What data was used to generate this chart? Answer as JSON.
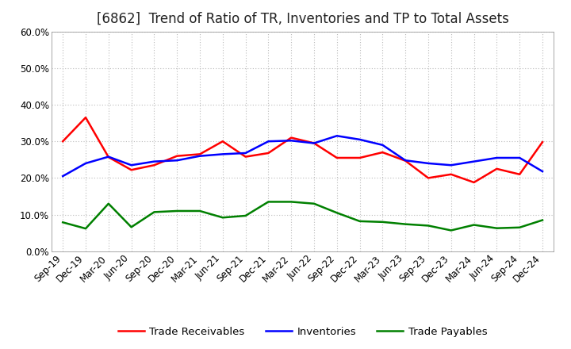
{
  "title": "[6862]  Trend of Ratio of TR, Inventories and TP to Total Assets",
  "x_labels": [
    "Sep-19",
    "Dec-19",
    "Mar-20",
    "Jun-20",
    "Sep-20",
    "Dec-20",
    "Mar-21",
    "Jun-21",
    "Sep-21",
    "Dec-21",
    "Mar-22",
    "Jun-22",
    "Sep-22",
    "Dec-22",
    "Mar-23",
    "Jun-23",
    "Sep-23",
    "Dec-23",
    "Mar-24",
    "Jun-24",
    "Sep-24",
    "Dec-24"
  ],
  "trade_receivables": [
    0.3,
    0.365,
    0.257,
    0.222,
    0.235,
    0.26,
    0.265,
    0.3,
    0.258,
    0.268,
    0.31,
    0.295,
    0.255,
    0.255,
    0.27,
    0.247,
    0.2,
    0.21,
    0.188,
    0.225,
    0.21,
    0.298
  ],
  "inventories": [
    0.205,
    0.24,
    0.258,
    0.235,
    0.245,
    0.248,
    0.26,
    0.265,
    0.268,
    0.3,
    0.302,
    0.295,
    0.315,
    0.305,
    0.29,
    0.248,
    0.24,
    0.235,
    0.245,
    0.255,
    0.255,
    0.218
  ],
  "trade_payables": [
    0.079,
    0.062,
    0.13,
    0.066,
    0.107,
    0.11,
    0.11,
    0.092,
    0.097,
    0.135,
    0.135,
    0.13,
    0.105,
    0.082,
    0.08,
    0.074,
    0.07,
    0.057,
    0.072,
    0.063,
    0.065,
    0.085
  ],
  "line_colors": {
    "trade_receivables": "#FF0000",
    "inventories": "#0000FF",
    "trade_payables": "#008000"
  },
  "legend_labels": [
    "Trade Receivables",
    "Inventories",
    "Trade Payables"
  ],
  "ylim": [
    0.0,
    0.6
  ],
  "yticks": [
    0.0,
    0.1,
    0.2,
    0.3,
    0.4,
    0.5,
    0.6
  ],
  "background_color": "#FFFFFF",
  "plot_bg_color": "#FFFFFF",
  "grid_color": "#BBBBBB",
  "title_fontsize": 12,
  "axis_fontsize": 8.5,
  "legend_fontsize": 9.5,
  "line_width": 1.8
}
